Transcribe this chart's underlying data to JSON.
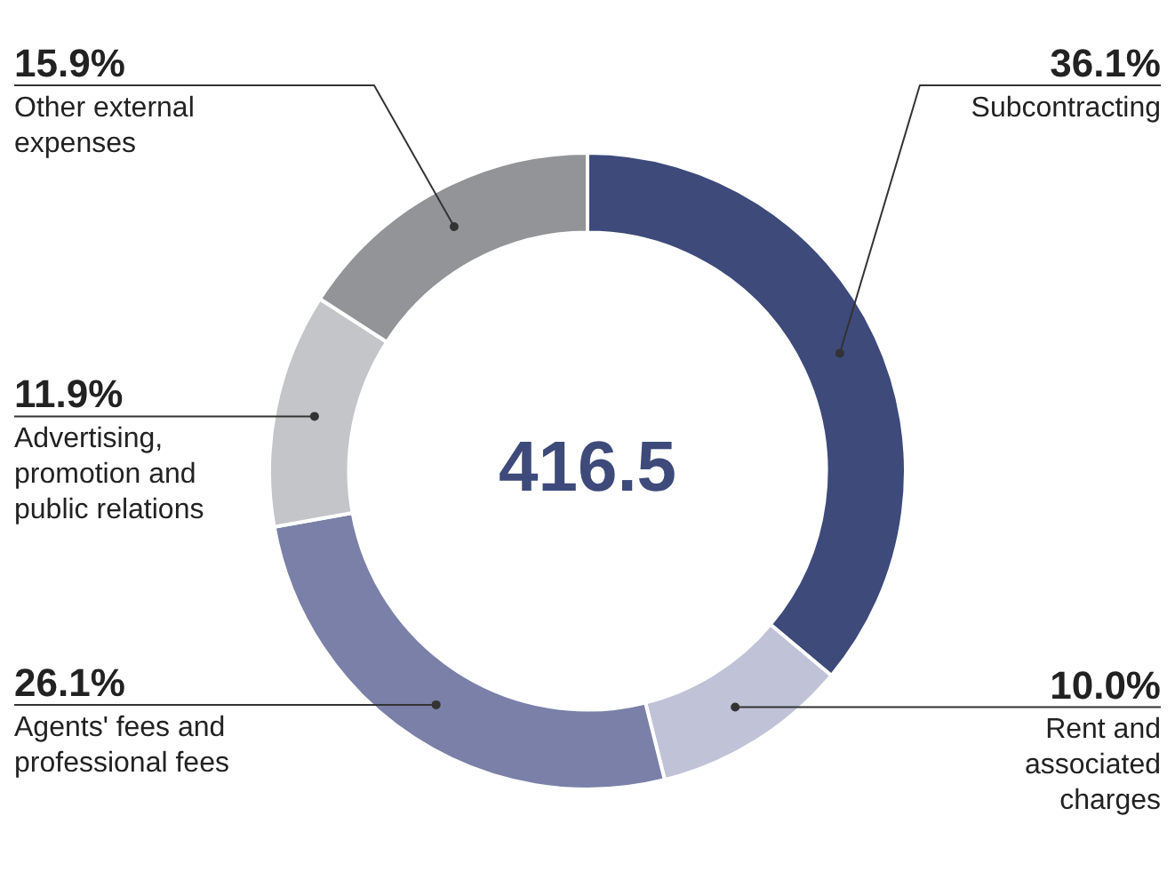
{
  "chart_data": {
    "type": "donut",
    "categories": [
      "Subcontracting",
      "Rent and associated charges",
      "Agents' fees and professional fees",
      "Advertising, promotion and public relations",
      "Other external expenses"
    ],
    "values": [
      36.1,
      10.0,
      26.1,
      11.9,
      15.9
    ],
    "value_labels": [
      "36.1%",
      "10.0%",
      "26.1%",
      "11.9%",
      "15.9%"
    ],
    "colors": [
      "#3d4a7a",
      "#c0c3d8",
      "#7a80a8",
      "#c4c5c9",
      "#939498"
    ],
    "annotations": [
      "416.5"
    ],
    "legend": false
  }
}
